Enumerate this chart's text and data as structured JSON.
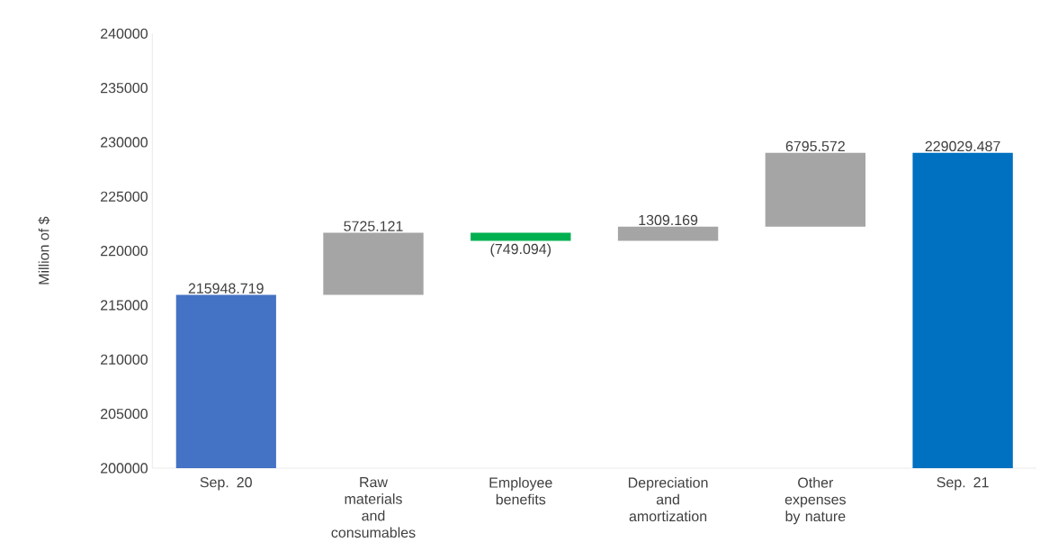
{
  "chart_data": {
    "type": "bar",
    "ylabel": "Million of $",
    "categories": [
      "Sep. 20",
      "Raw materials and consumables",
      "Employee benefits",
      "Depreciation and amortization",
      "Other expenses by nature",
      "Sep. 21"
    ],
    "values": [
      215948.719,
      5725.121,
      -749.094,
      1309.169,
      6795.572,
      229029.487
    ],
    "base": [
      0,
      215948.719,
      221673.84,
      220924.746,
      222233.915,
      0
    ],
    "colors": [
      "#4472c4",
      "#a5a5a5",
      "#00b050",
      "#a5a5a5",
      "#a5a5a5",
      "#0070c0"
    ],
    "value_labels": [
      "215948.719",
      "5725.121",
      "(749.094)",
      "1309.169",
      "6795.572",
      "229029.487"
    ],
    "ylim": [
      200000,
      240000
    ],
    "yticks": [
      200000,
      205000,
      210000,
      215000,
      220000,
      225000,
      230000,
      235000,
      240000
    ],
    "grid": false
  }
}
